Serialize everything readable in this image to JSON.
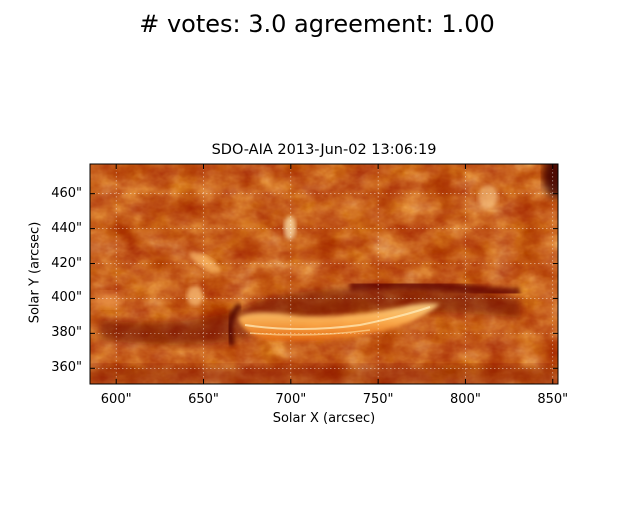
{
  "figure": {
    "suptitle": "# votes: 3.0 agreement: 1.00"
  },
  "map": {
    "title": "SDO-AIA   2013-Jun-02 13:06:19",
    "xlabel": "Solar X (arcsec)",
    "ylabel": "Solar Y (arcsec)",
    "colormap": "sdoaia-hot (dark red to orange to pale yellow)",
    "xlim": [
      585,
      853
    ],
    "ylim": [
      351,
      477
    ],
    "xticks": [
      {
        "value": 600,
        "label": "600\""
      },
      {
        "value": 650,
        "label": "650\""
      },
      {
        "value": 700,
        "label": "700\""
      },
      {
        "value": 750,
        "label": "750\""
      },
      {
        "value": 800,
        "label": "800\""
      },
      {
        "value": 850,
        "label": "850\""
      }
    ],
    "yticks": [
      {
        "value": 360,
        "label": "360\""
      },
      {
        "value": 380,
        "label": "380\""
      },
      {
        "value": 400,
        "label": "400\""
      },
      {
        "value": 420,
        "label": "420\""
      },
      {
        "value": 440,
        "label": "440\""
      },
      {
        "value": 460,
        "label": "460\""
      }
    ],
    "grid": true,
    "colors": {
      "dark": "#7a0c00",
      "mid": "#c03a00",
      "bright": "#ff9a30",
      "highlight": "#ffe6a8"
    }
  }
}
